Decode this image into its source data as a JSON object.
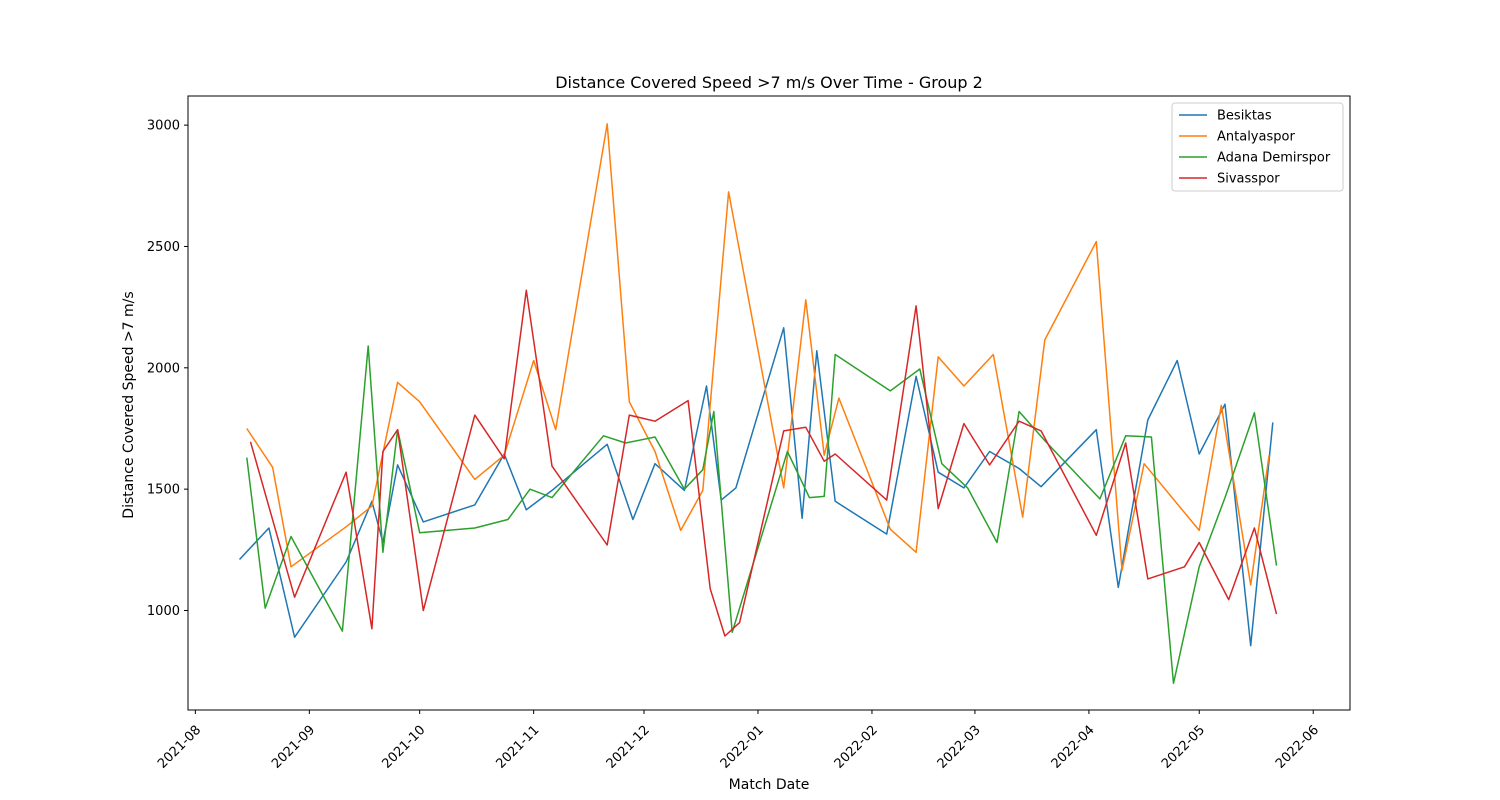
{
  "chart_data": {
    "type": "line",
    "title": "Distance Covered Speed >7 m/s Over Time - Group 2",
    "xlabel": "Match Date",
    "ylabel": "Distance Covered Speed >7 m/s",
    "xlim": [
      "2021-07-30",
      "2022-06-11"
    ],
    "ylim": [
      590,
      3120
    ],
    "x_ticks": [
      "2021-08",
      "2021-09",
      "2021-10",
      "2021-11",
      "2021-12",
      "2022-01",
      "2022-02",
      "2022-03",
      "2022-04",
      "2022-05",
      "2022-06"
    ],
    "y_ticks": [
      1000,
      1500,
      2000,
      2500,
      3000
    ],
    "legend_position": "top-right",
    "grid": false,
    "series": [
      {
        "name": "Besiktas",
        "color": "#1f77b4",
        "points": [
          [
            "2021-08-13",
            1210
          ],
          [
            "2021-08-21",
            1340
          ],
          [
            "2021-08-28",
            890
          ],
          [
            "2021-09-11",
            1200
          ],
          [
            "2021-09-18",
            1450
          ],
          [
            "2021-09-21",
            1280
          ],
          [
            "2021-09-25",
            1600
          ],
          [
            "2021-10-02",
            1365
          ],
          [
            "2021-10-16",
            1435
          ],
          [
            "2021-10-24",
            1645
          ],
          [
            "2021-10-30",
            1415
          ],
          [
            "2021-11-06",
            1495
          ],
          [
            "2021-11-21",
            1685
          ],
          [
            "2021-11-28",
            1375
          ],
          [
            "2021-12-04",
            1605
          ],
          [
            "2021-12-12",
            1495
          ],
          [
            "2021-12-18",
            1925
          ],
          [
            "2021-12-22",
            1455
          ],
          [
            "2021-12-26",
            1505
          ],
          [
            "2022-01-08",
            2165
          ],
          [
            "2022-01-13",
            1380
          ],
          [
            "2022-01-17",
            2070
          ],
          [
            "2022-01-22",
            1450
          ],
          [
            "2022-02-05",
            1315
          ],
          [
            "2022-02-13",
            1965
          ],
          [
            "2022-02-19",
            1570
          ],
          [
            "2022-02-26",
            1505
          ],
          [
            "2022-03-05",
            1655
          ],
          [
            "2022-03-13",
            1585
          ],
          [
            "2022-03-19",
            1510
          ],
          [
            "2022-04-03",
            1745
          ],
          [
            "2022-04-09",
            1095
          ],
          [
            "2022-04-17",
            1785
          ],
          [
            "2022-04-25",
            2030
          ],
          [
            "2022-05-01",
            1645
          ],
          [
            "2022-05-08",
            1850
          ],
          [
            "2022-05-15",
            855
          ],
          [
            "2022-05-21",
            1775
          ]
        ]
      },
      {
        "name": "Antalyaspor",
        "color": "#ff7f0e",
        "points": [
          [
            "2021-08-15",
            1750
          ],
          [
            "2021-08-22",
            1590
          ],
          [
            "2021-08-27",
            1180
          ],
          [
            "2021-09-11",
            1345
          ],
          [
            "2021-09-18",
            1430
          ],
          [
            "2021-09-25",
            1940
          ],
          [
            "2021-10-01",
            1860
          ],
          [
            "2021-10-16",
            1540
          ],
          [
            "2021-10-24",
            1640
          ],
          [
            "2021-11-01",
            2030
          ],
          [
            "2021-11-07",
            1745
          ],
          [
            "2021-11-21",
            3005
          ],
          [
            "2021-11-27",
            1860
          ],
          [
            "2021-12-04",
            1655
          ],
          [
            "2021-12-11",
            1330
          ],
          [
            "2021-12-17",
            1495
          ],
          [
            "2021-12-24",
            2725
          ],
          [
            "2022-01-08",
            1505
          ],
          [
            "2022-01-14",
            2280
          ],
          [
            "2022-01-19",
            1640
          ],
          [
            "2022-01-23",
            1875
          ],
          [
            "2022-02-06",
            1335
          ],
          [
            "2022-02-13",
            1240
          ],
          [
            "2022-02-19",
            2045
          ],
          [
            "2022-02-26",
            1925
          ],
          [
            "2022-03-06",
            2055
          ],
          [
            "2022-03-14",
            1385
          ],
          [
            "2022-03-20",
            2115
          ],
          [
            "2022-04-03",
            2520
          ],
          [
            "2022-04-10",
            1165
          ],
          [
            "2022-04-16",
            1605
          ],
          [
            "2022-05-01",
            1330
          ],
          [
            "2022-05-07",
            1845
          ],
          [
            "2022-05-15",
            1105
          ],
          [
            "2022-05-20",
            1640
          ]
        ]
      },
      {
        "name": "Adana Demirspor",
        "color": "#2ca02c",
        "points": [
          [
            "2021-08-15",
            1630
          ],
          [
            "2021-08-20",
            1010
          ],
          [
            "2021-08-27",
            1305
          ],
          [
            "2021-09-10",
            915
          ],
          [
            "2021-09-17",
            2090
          ],
          [
            "2021-09-21",
            1240
          ],
          [
            "2021-09-25",
            1745
          ],
          [
            "2021-10-01",
            1320
          ],
          [
            "2021-10-16",
            1340
          ],
          [
            "2021-10-25",
            1375
          ],
          [
            "2021-10-31",
            1500
          ],
          [
            "2021-11-06",
            1465
          ],
          [
            "2021-11-20",
            1720
          ],
          [
            "2021-11-26",
            1690
          ],
          [
            "2021-12-04",
            1715
          ],
          [
            "2021-12-12",
            1500
          ],
          [
            "2021-12-17",
            1580
          ],
          [
            "2021-12-20",
            1820
          ],
          [
            "2021-12-25",
            910
          ],
          [
            "2022-01-09",
            1655
          ],
          [
            "2022-01-15",
            1465
          ],
          [
            "2022-01-19",
            1470
          ],
          [
            "2022-01-22",
            2055
          ],
          [
            "2022-02-06",
            1905
          ],
          [
            "2022-02-14",
            1995
          ],
          [
            "2022-02-20",
            1605
          ],
          [
            "2022-02-27",
            1505
          ],
          [
            "2022-03-07",
            1280
          ],
          [
            "2022-03-13",
            1820
          ],
          [
            "2022-03-20",
            1700
          ],
          [
            "2022-04-04",
            1460
          ],
          [
            "2022-04-11",
            1720
          ],
          [
            "2022-04-18",
            1715
          ],
          [
            "2022-04-24",
            700
          ],
          [
            "2022-05-01",
            1180
          ],
          [
            "2022-05-08",
            1465
          ],
          [
            "2022-05-16",
            1815
          ],
          [
            "2022-05-22",
            1185
          ]
        ]
      },
      {
        "name": "Sivasspor",
        "color": "#d62728",
        "points": [
          [
            "2021-08-16",
            1695
          ],
          [
            "2021-08-28",
            1055
          ],
          [
            "2021-09-11",
            1570
          ],
          [
            "2021-09-18",
            925
          ],
          [
            "2021-09-21",
            1655
          ],
          [
            "2021-09-25",
            1745
          ],
          [
            "2021-10-02",
            1000
          ],
          [
            "2021-10-16",
            1805
          ],
          [
            "2021-10-24",
            1625
          ],
          [
            "2021-10-30",
            2320
          ],
          [
            "2021-11-06",
            1595
          ],
          [
            "2021-11-21",
            1270
          ],
          [
            "2021-11-27",
            1805
          ],
          [
            "2021-12-04",
            1780
          ],
          [
            "2021-12-13",
            1865
          ],
          [
            "2021-12-19",
            1090
          ],
          [
            "2021-12-23",
            895
          ],
          [
            "2021-12-27",
            950
          ],
          [
            "2022-01-08",
            1740
          ],
          [
            "2022-01-14",
            1755
          ],
          [
            "2022-01-19",
            1615
          ],
          [
            "2022-01-22",
            1645
          ],
          [
            "2022-02-05",
            1455
          ],
          [
            "2022-02-13",
            2255
          ],
          [
            "2022-02-19",
            1420
          ],
          [
            "2022-02-26",
            1770
          ],
          [
            "2022-03-05",
            1600
          ],
          [
            "2022-03-13",
            1780
          ],
          [
            "2022-03-19",
            1740
          ],
          [
            "2022-04-03",
            1310
          ],
          [
            "2022-04-11",
            1690
          ],
          [
            "2022-04-17",
            1130
          ],
          [
            "2022-04-27",
            1180
          ],
          [
            "2022-05-01",
            1280
          ],
          [
            "2022-05-09",
            1045
          ],
          [
            "2022-05-16",
            1340
          ],
          [
            "2022-05-22",
            985
          ]
        ]
      }
    ]
  }
}
